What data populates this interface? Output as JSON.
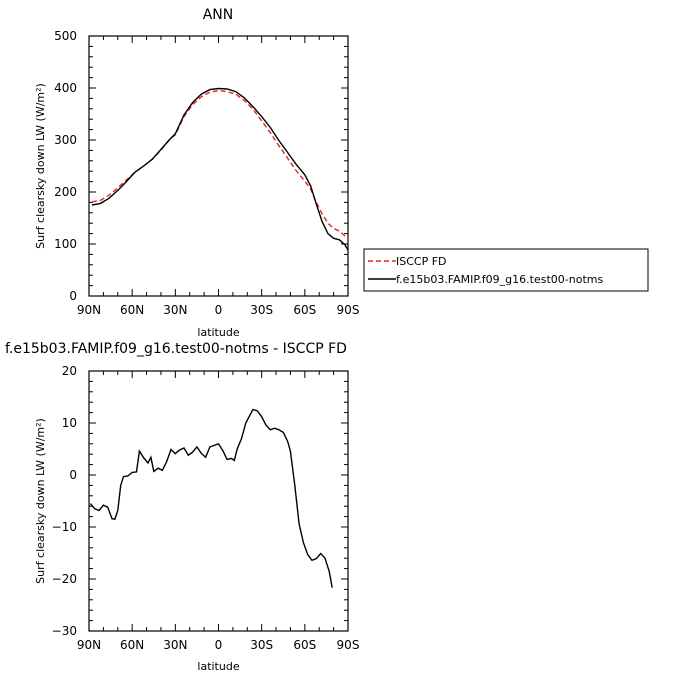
{
  "chart_data": [
    {
      "type": "line",
      "title": "ANN",
      "xlabel": "latitude",
      "ylabel": "Surf clearsky down LW (W/m²)",
      "xlim": [
        90,
        -90
      ],
      "ylim": [
        0,
        500
      ],
      "x_ticks": [
        90,
        60,
        30,
        0,
        -30,
        -60,
        -90
      ],
      "x_tick_labels": [
        "90N",
        "60N",
        "30N",
        "0",
        "30S",
        "60S",
        "90S"
      ],
      "y_ticks": [
        0,
        100,
        200,
        300,
        400,
        500
      ],
      "y_tick_labels": [
        "0",
        "100",
        "200",
        "300",
        "400",
        "500"
      ],
      "legend_position": "right",
      "series": [
        {
          "name": "ISCCP FD",
          "color": "#e8231f",
          "dash": "dashed",
          "points": [
            [
              88,
              181
            ],
            [
              82,
              184
            ],
            [
              76,
              194
            ],
            [
              70,
              208
            ],
            [
              64,
              223
            ],
            [
              58,
              238
            ],
            [
              52,
              250
            ],
            [
              46,
              263
            ],
            [
              40,
              280
            ],
            [
              34,
              301
            ],
            [
              30,
              310
            ],
            [
              24,
              345
            ],
            [
              18,
              368
            ],
            [
              12,
              383
            ],
            [
              6,
              392
            ],
            [
              0,
              395
            ],
            [
              -6,
              393
            ],
            [
              -12,
              388
            ],
            [
              -18,
              376
            ],
            [
              -24,
              359
            ],
            [
              -30,
              337
            ],
            [
              -36,
              314
            ],
            [
              -42,
              289
            ],
            [
              -48,
              265
            ],
            [
              -54,
              241
            ],
            [
              -60,
              221
            ],
            [
              -64,
              206
            ],
            [
              -68,
              180
            ],
            [
              -72,
              158
            ],
            [
              -76,
              140
            ],
            [
              -80,
              130
            ],
            [
              -84,
              125
            ],
            [
              -88,
              115
            ],
            [
              -90,
              110
            ]
          ]
        },
        {
          "name": "f.e15b03.FAMIP.f09_g16.test00-notms",
          "color": "#000000",
          "dash": "solid",
          "points": [
            [
              88,
              175
            ],
            [
              82,
              178
            ],
            [
              76,
              188
            ],
            [
              70,
              203
            ],
            [
              64,
              220
            ],
            [
              58,
              238
            ],
            [
              52,
              250
            ],
            [
              46,
              263
            ],
            [
              40,
              282
            ],
            [
              34,
              301
            ],
            [
              30,
              312
            ],
            [
              24,
              348
            ],
            [
              18,
              372
            ],
            [
              12,
              388
            ],
            [
              6,
              397
            ],
            [
              0,
              399
            ],
            [
              -6,
              398
            ],
            [
              -12,
              393
            ],
            [
              -18,
              381
            ],
            [
              -24,
              364
            ],
            [
              -30,
              345
            ],
            [
              -36,
              324
            ],
            [
              -42,
              299
            ],
            [
              -48,
              276
            ],
            [
              -54,
              253
            ],
            [
              -60,
              233
            ],
            [
              -64,
              212
            ],
            [
              -68,
              177
            ],
            [
              -72,
              143
            ],
            [
              -76,
              120
            ],
            [
              -80,
              111
            ],
            [
              -84,
              108
            ],
            [
              -88,
              98
            ],
            [
              -90,
              88
            ]
          ]
        }
      ]
    },
    {
      "type": "line",
      "title": "f.e15b03.FAMIP.f09_g16.test00-notms - ISCCP FD",
      "xlabel": "latitude",
      "ylabel": "Surf clearsky down LW (W/m²)",
      "xlim": [
        90,
        -90
      ],
      "ylim": [
        -30,
        20
      ],
      "x_ticks": [
        90,
        60,
        30,
        0,
        -30,
        -60,
        -90
      ],
      "x_tick_labels": [
        "90N",
        "60N",
        "30N",
        "0",
        "30S",
        "60S",
        "90S"
      ],
      "y_ticks": [
        -30,
        -20,
        -10,
        0,
        10,
        20
      ],
      "y_tick_labels": [
        "−30",
        "−20",
        "−10",
        "0",
        "10",
        "20"
      ],
      "series": [
        {
          "color": "#000000",
          "points": [
            [
              89,
              -5.5
            ],
            [
              86,
              -6.5
            ],
            [
              83,
              -6.8
            ],
            [
              80,
              -5.8
            ],
            [
              77,
              -6.2
            ],
            [
              74,
              -8.4
            ],
            [
              72,
              -8.5
            ],
            [
              70,
              -6.8
            ],
            [
              68,
              -2
            ],
            [
              66,
              -0.3
            ],
            [
              63,
              -0.2
            ],
            [
              60,
              0.5
            ],
            [
              57,
              0.6
            ],
            [
              55,
              4.6
            ],
            [
              52,
              3.3
            ],
            [
              49,
              2.3
            ],
            [
              47,
              3.4
            ],
            [
              45,
              0.7
            ],
            [
              42,
              1.3
            ],
            [
              39,
              0.9
            ],
            [
              36,
              2.6
            ],
            [
              33,
              4.9
            ],
            [
              30,
              4.1
            ],
            [
              27,
              4.8
            ],
            [
              24,
              5.2
            ],
            [
              21,
              3.8
            ],
            [
              18,
              4.4
            ],
            [
              15,
              5.4
            ],
            [
              12,
              4.2
            ],
            [
              9,
              3.4
            ],
            [
              6,
              5.4
            ],
            [
              3,
              5.7
            ],
            [
              0,
              6
            ],
            [
              -3,
              4.7
            ],
            [
              -6,
              3
            ],
            [
              -9,
              3.2
            ],
            [
              -11,
              2.8
            ],
            [
              -13,
              5
            ],
            [
              -16,
              7
            ],
            [
              -19,
              10
            ],
            [
              -22,
              11.6
            ],
            [
              -24,
              12.6
            ],
            [
              -27,
              12.3
            ],
            [
              -30,
              11.2
            ],
            [
              -33,
              9.6
            ],
            [
              -36,
              8.7
            ],
            [
              -39,
              9
            ],
            [
              -42,
              8.7
            ],
            [
              -45,
              8.2
            ],
            [
              -48,
              6.5
            ],
            [
              -50,
              4.6
            ],
            [
              -53,
              -2
            ],
            [
              -56,
              -9.4
            ],
            [
              -59,
              -13
            ],
            [
              -62,
              -15.3
            ],
            [
              -65,
              -16.4
            ],
            [
              -68,
              -16.1
            ],
            [
              -71,
              -15.1
            ],
            [
              -74,
              -16
            ],
            [
              -77,
              -18.6
            ],
            [
              -79,
              -21.7
            ]
          ]
        }
      ]
    }
  ]
}
